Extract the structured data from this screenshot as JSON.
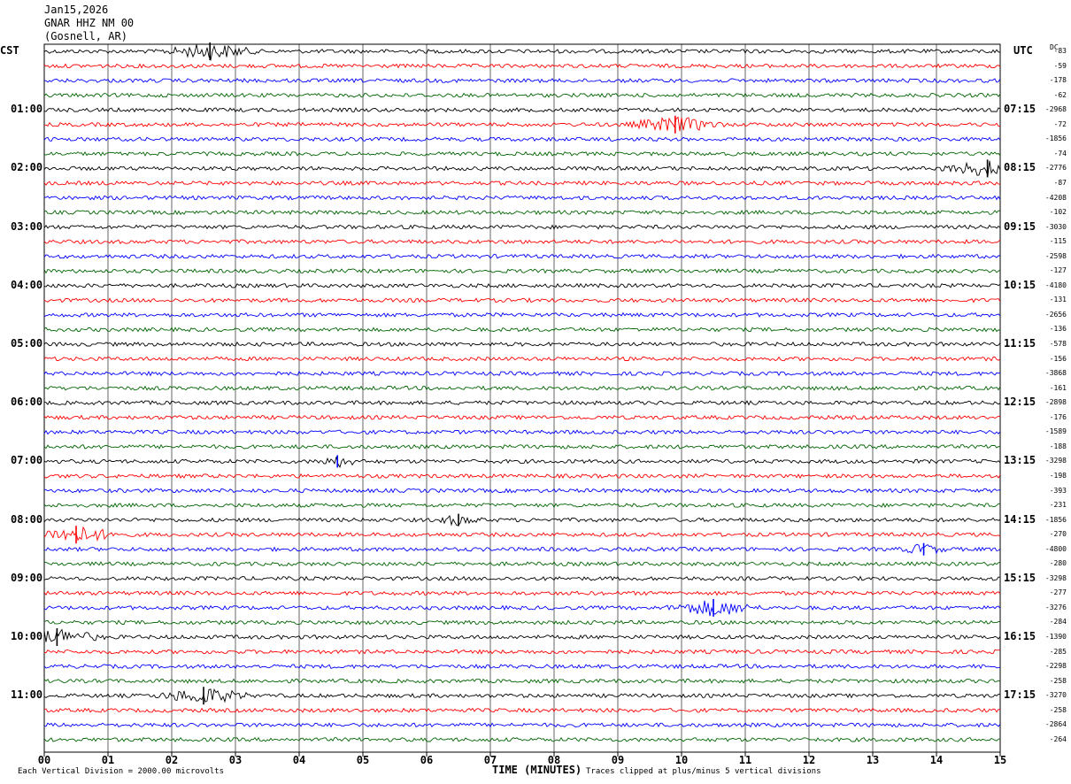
{
  "header": {
    "date": "Jan15,2026",
    "station": "GNAR HHZ NM 00",
    "location": "(Gosnell, AR)"
  },
  "left_timezone": "CST",
  "right_timezone": "UTC",
  "dc_label": "DC",
  "footer": {
    "scale_note": "Each Vertical Division = 2000.00 microvolts",
    "clip_note": "Traces clipped at plus/minus 5 vertical divisions"
  },
  "colors": {
    "trace_cycle": [
      "#000000",
      "#ff0000",
      "#0000ff",
      "#006400"
    ],
    "grid": "#000000",
    "background": "#ffffff"
  },
  "chart_data": {
    "type": "line",
    "title": "GNAR HHZ NM 00",
    "xlabel": "TIME (MINUTES)",
    "ylabel": "",
    "xlim": [
      0,
      15
    ],
    "x_ticks": [
      "00",
      "01",
      "02",
      "03",
      "04",
      "05",
      "06",
      "07",
      "08",
      "09",
      "10",
      "11",
      "12",
      "13",
      "14",
      "15"
    ],
    "rows_per_hour": 4,
    "row_count": 48,
    "left_hour_labels": [
      "01:00",
      "02:00",
      "03:00",
      "04:00",
      "05:00",
      "06:00",
      "07:00",
      "08:00",
      "09:00",
      "10:00",
      "11:00"
    ],
    "right_hour_labels": [
      "07:15",
      "08:15",
      "09:15",
      "10:15",
      "11:15",
      "12:15",
      "13:15",
      "14:15",
      "15:15",
      "16:15",
      "17:15"
    ],
    "dc_offsets": [
      "-83",
      "-59",
      "-178",
      "-62",
      "-2968",
      "-72",
      "-1856",
      "-74",
      "-2776",
      "-87",
      "-4208",
      "-102",
      "-3030",
      "-115",
      "-2598",
      "-127",
      "-4180",
      "-131",
      "-2656",
      "-136",
      "-578",
      "-156",
      "-3868",
      "-161",
      "-2898",
      "-176",
      "-1589",
      "-188",
      "-3298",
      "-198",
      "-393",
      "-231",
      "-1856",
      "-270",
      "-4800",
      "-280",
      "-3298",
      "-277",
      "-3276",
      "-284",
      "-1390",
      "-285",
      "-2298",
      "-258",
      "-3270",
      "-258",
      "-2864",
      "-264"
    ],
    "trace_activity": [
      {
        "row": 0,
        "minute": 2.6,
        "amplitude": "large",
        "color": "black"
      },
      {
        "row": 5,
        "minute": 9.9,
        "amplitude": "large",
        "color": "red"
      },
      {
        "row": 8,
        "minute": 14.8,
        "amplitude": "large",
        "color": "black"
      },
      {
        "row": 28,
        "minute": 4.6,
        "amplitude": "medium",
        "color": "blue"
      },
      {
        "row": 32,
        "minute": 6.5,
        "amplitude": "medium",
        "color": "black"
      },
      {
        "row": 33,
        "minute": 0.5,
        "amplitude": "large",
        "color": "red"
      },
      {
        "row": 34,
        "minute": 13.8,
        "amplitude": "medium",
        "color": "blue"
      },
      {
        "row": 38,
        "minute": 10.5,
        "amplitude": "large",
        "color": "blue"
      },
      {
        "row": 40,
        "minute": 0.2,
        "amplitude": "large",
        "color": "black"
      },
      {
        "row": 44,
        "minute": 2.5,
        "amplitude": "large",
        "color": "black"
      }
    ]
  }
}
